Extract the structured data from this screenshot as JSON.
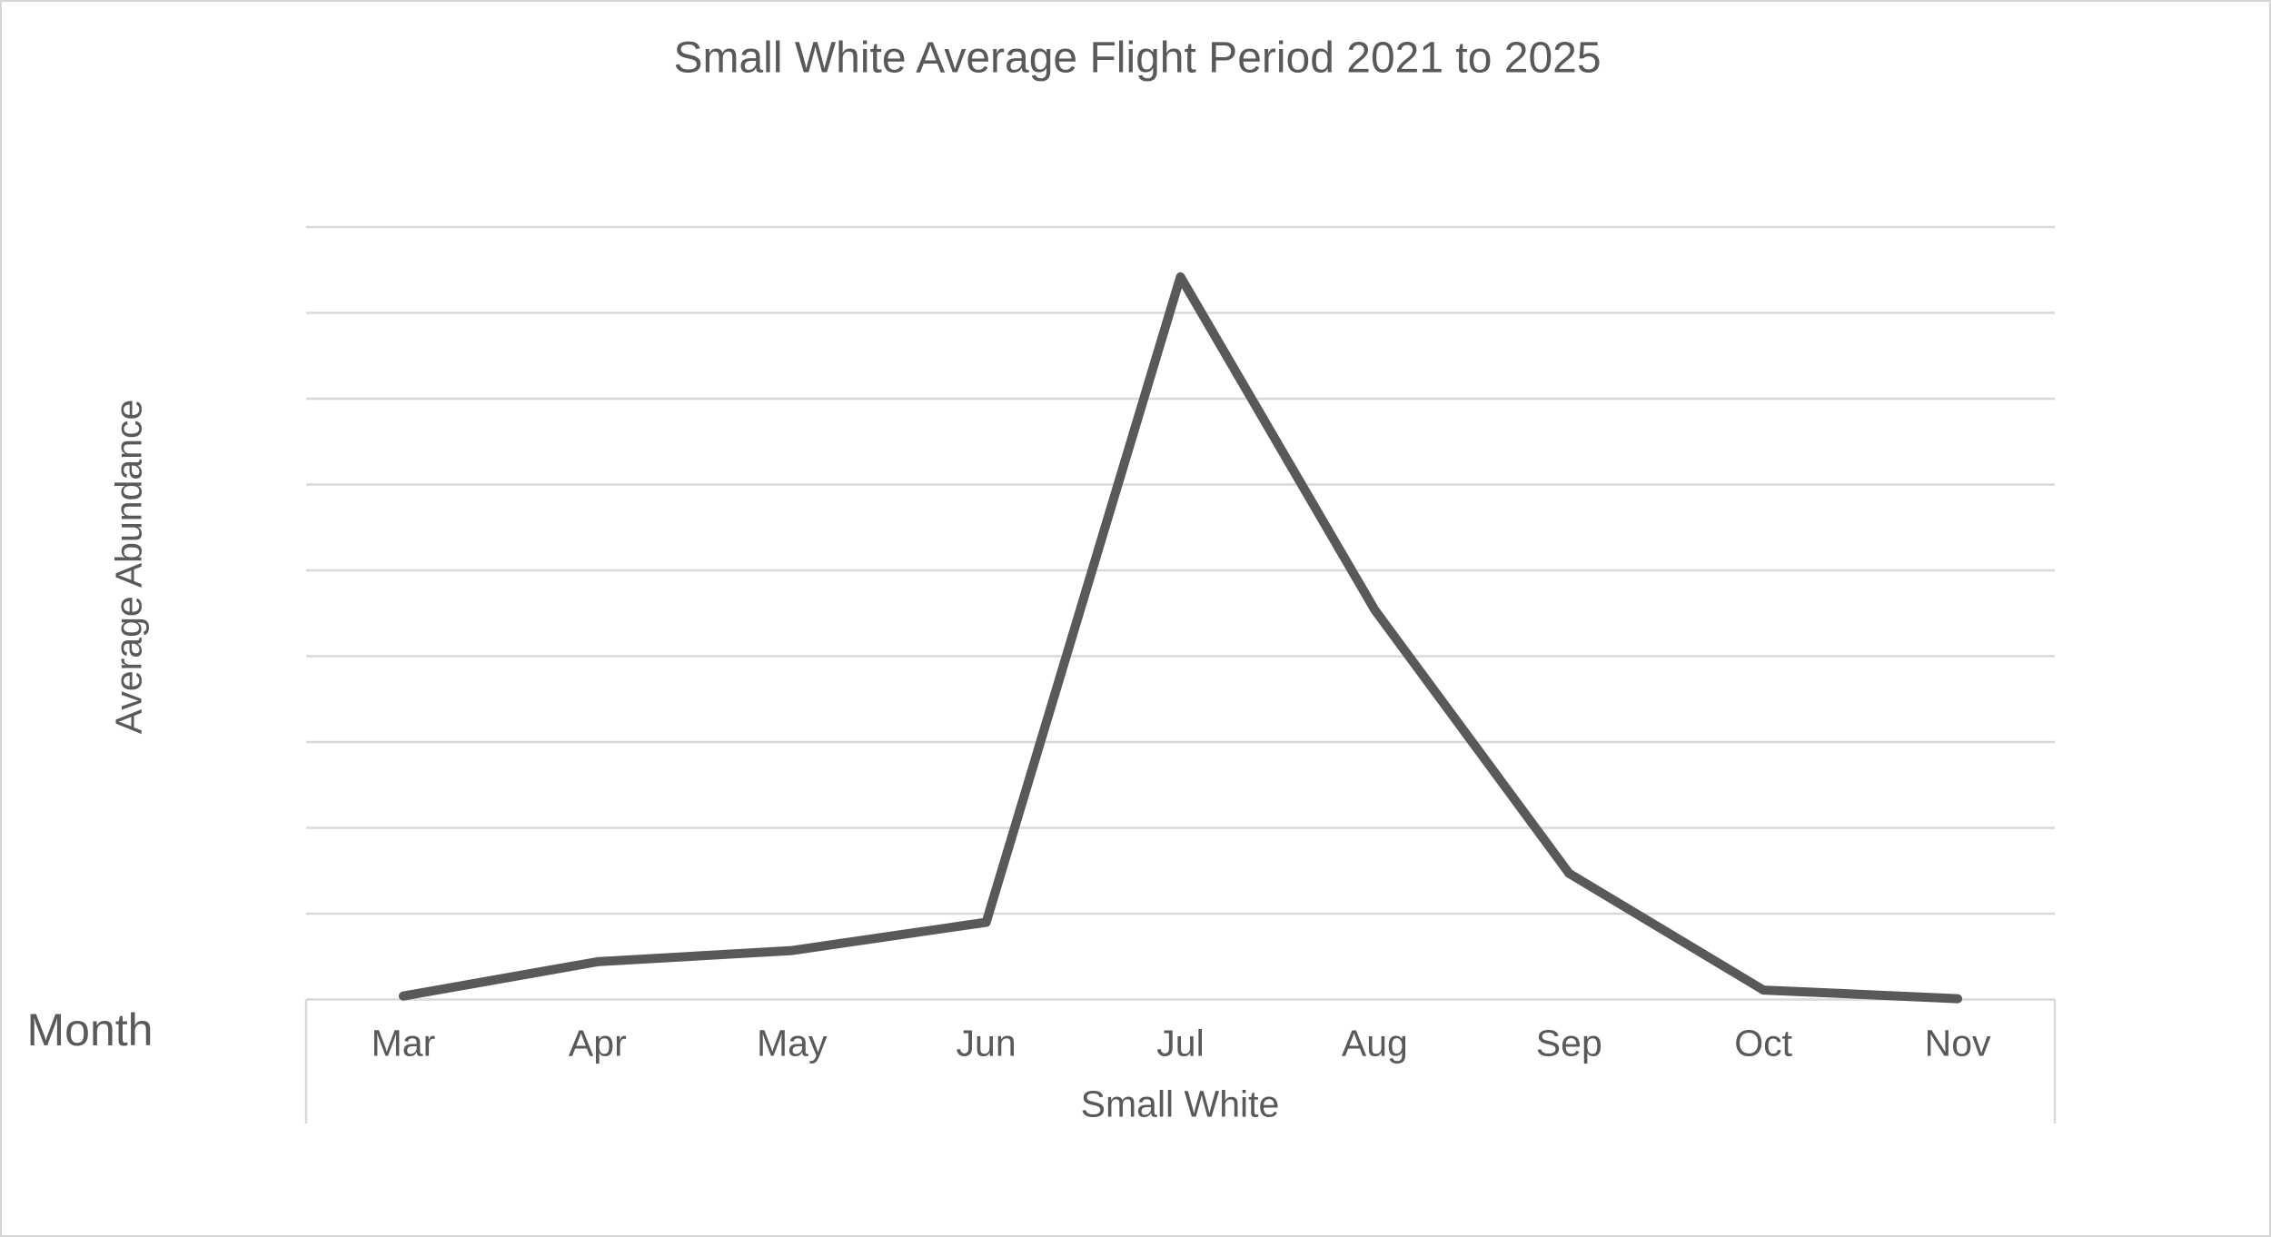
{
  "window": {
    "background": "#ffffff",
    "border_color": "#d6d6d6"
  },
  "colors": {
    "text": "#595959",
    "series_line": "#595959",
    "gridline": "#d9d9d9",
    "axis_border": "#d9d9d9"
  },
  "chart_data": {
    "type": "line",
    "title": "Small White Average Flight Period 2021 to 2025",
    "xlabel": "Month",
    "ylabel": "Average Abundance",
    "categories": [
      "Mar",
      "Apr",
      "May",
      "Jun",
      "Jul",
      "Aug",
      "Sep",
      "Oct",
      "Nov"
    ],
    "series": [
      {
        "name": "Small White",
        "values": [
          0.04,
          0.44,
          0.57,
          0.9,
          8.42,
          4.54,
          1.47,
          0.11,
          0.01
        ]
      }
    ],
    "ylim": [
      0,
      9
    ],
    "gridline_interval": 1,
    "y_tick_labels_visible": false,
    "x_group_label": "Small White",
    "legend": "none",
    "grid": "horizontal"
  }
}
